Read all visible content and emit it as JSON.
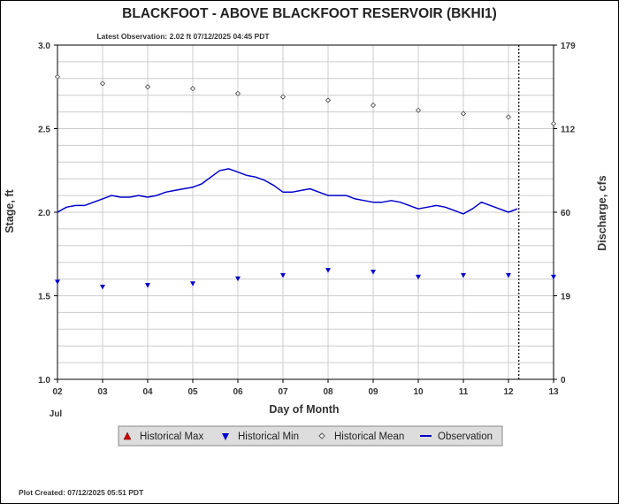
{
  "chart_data": {
    "type": "line",
    "title": "BLACKFOOT - ABOVE BLACKFOOT RESERVOIR  (BKHI1)",
    "subtitle": "Latest Observation: 2.02 ft 07/12/2025 04:45 PDT",
    "xlabel": "Day of Month",
    "x_month_label": "Jul",
    "ylabel": "Stage, ft",
    "y2label": "Discharge, cfs",
    "footer": "Plot Created: 07/12/2025 05:51 PDT",
    "x_ticks": [
      "02",
      "03",
      "04",
      "05",
      "06",
      "07",
      "08",
      "09",
      "10",
      "11",
      "12",
      "13"
    ],
    "xlim": [
      2,
      13
    ],
    "ylim": [
      1.0,
      3.0
    ],
    "y_ticks": [
      "1.0",
      "1.5",
      "2.0",
      "2.5",
      "3.0"
    ],
    "y2_ticks": [
      "0",
      "19",
      "60",
      "112",
      "179"
    ],
    "y2_tick_stage": [
      1.0,
      1.5,
      2.0,
      2.5,
      3.0
    ],
    "grid": true,
    "latest_observation_day": 12.23,
    "legend_position": "bottom",
    "legend": [
      {
        "name": "Historical Max",
        "marker": "triangle-up",
        "color": "#cc0000"
      },
      {
        "name": "Historical Min",
        "marker": "triangle-down",
        "color": "#0000cc"
      },
      {
        "name": "Historical Mean",
        "marker": "diamond",
        "color": "#555555"
      },
      {
        "name": "Observation",
        "marker": "line",
        "color": "#0000cc"
      }
    ],
    "series": [
      {
        "name": "Historical Mean",
        "x": [
          2,
          3,
          4,
          5,
          6,
          7,
          8,
          9,
          10,
          11,
          12,
          13
        ],
        "y": [
          2.81,
          2.77,
          2.75,
          2.74,
          2.71,
          2.69,
          2.67,
          2.64,
          2.61,
          2.59,
          2.57,
          2.53
        ]
      },
      {
        "name": "Historical Min",
        "x": [
          2,
          3,
          4,
          5,
          6,
          7,
          8,
          9,
          10,
          11,
          12,
          13
        ],
        "y": [
          1.58,
          1.55,
          1.56,
          1.57,
          1.6,
          1.62,
          1.65,
          1.64,
          1.61,
          1.62,
          1.62,
          1.61
        ]
      },
      {
        "name": "Observation",
        "x": [
          2.0,
          2.2,
          2.4,
          2.6,
          2.8,
          3.0,
          3.2,
          3.4,
          3.6,
          3.8,
          4.0,
          4.2,
          4.4,
          4.6,
          4.8,
          5.0,
          5.2,
          5.4,
          5.6,
          5.8,
          6.0,
          6.2,
          6.4,
          6.6,
          6.8,
          7.0,
          7.2,
          7.4,
          7.6,
          7.8,
          8.0,
          8.2,
          8.4,
          8.6,
          8.8,
          9.0,
          9.2,
          9.4,
          9.6,
          9.8,
          10.0,
          10.2,
          10.4,
          10.6,
          10.8,
          11.0,
          11.2,
          11.4,
          11.6,
          11.8,
          12.0,
          12.2
        ],
        "y": [
          2.0,
          2.03,
          2.04,
          2.04,
          2.06,
          2.08,
          2.1,
          2.09,
          2.09,
          2.1,
          2.09,
          2.1,
          2.12,
          2.13,
          2.14,
          2.15,
          2.17,
          2.21,
          2.25,
          2.26,
          2.24,
          2.22,
          2.21,
          2.19,
          2.16,
          2.12,
          2.12,
          2.13,
          2.14,
          2.12,
          2.1,
          2.1,
          2.1,
          2.08,
          2.07,
          2.06,
          2.06,
          2.07,
          2.06,
          2.04,
          2.02,
          2.03,
          2.04,
          2.03,
          2.01,
          1.99,
          2.02,
          2.06,
          2.04,
          2.02,
          2.0,
          2.02
        ]
      }
    ]
  }
}
